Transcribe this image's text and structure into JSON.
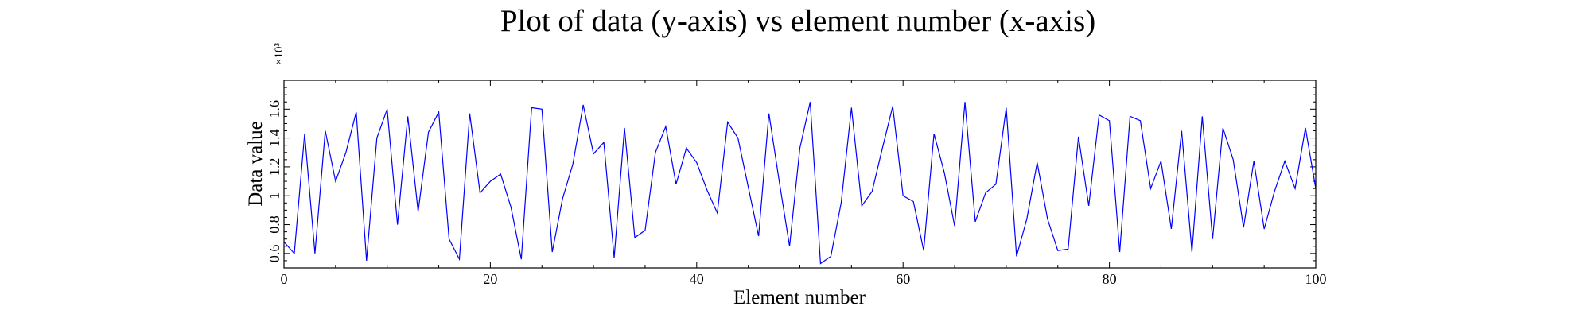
{
  "chart_data": {
    "type": "line",
    "title": "Plot of data (y-axis) vs element number (x-axis)",
    "xlabel": "Element number",
    "ylabel": "Data value",
    "y_scale_label": "×10³",
    "xlim": [
      0,
      100
    ],
    "ylim": [
      0.5,
      1.8
    ],
    "x_ticks": [
      0,
      20,
      40,
      60,
      80,
      100
    ],
    "y_ticks": [
      0.6,
      0.8,
      1.0,
      1.2,
      1.4,
      1.6
    ],
    "y_tick_labels": [
      "0.6",
      "0.8",
      "1",
      "1.2",
      "1.4",
      "1.6"
    ],
    "grid": false,
    "series": [
      {
        "color": "#0000ff",
        "x": [
          0,
          1,
          2,
          3,
          4,
          5,
          6,
          7,
          8,
          9,
          10,
          11,
          12,
          13,
          14,
          15,
          16,
          17,
          18,
          19,
          20,
          21,
          22,
          23,
          24,
          25,
          26,
          27,
          28,
          29,
          30,
          31,
          32,
          33,
          34,
          35,
          36,
          37,
          38,
          39,
          40,
          41,
          42,
          43,
          44,
          45,
          46,
          47,
          48,
          49,
          50,
          51,
          52,
          53,
          54,
          55,
          56,
          57,
          58,
          59,
          60,
          61,
          62,
          63,
          64,
          65,
          66,
          67,
          68,
          69,
          70,
          71,
          72,
          73,
          74,
          75,
          76,
          77,
          78,
          79,
          80,
          81,
          82,
          83,
          84,
          85,
          86,
          87,
          88,
          89,
          90,
          91,
          92,
          93,
          94,
          95,
          96,
          97,
          98,
          99,
          100
        ],
        "y": [
          0.68,
          0.6,
          1.43,
          0.6,
          1.45,
          1.1,
          1.3,
          1.58,
          0.55,
          1.4,
          1.6,
          0.8,
          1.55,
          0.89,
          1.44,
          1.58,
          0.7,
          0.56,
          1.57,
          1.02,
          1.1,
          1.15,
          0.92,
          0.56,
          1.61,
          1.6,
          0.61,
          0.98,
          1.22,
          1.63,
          1.29,
          1.37,
          0.57,
          1.47,
          0.71,
          0.76,
          1.3,
          1.48,
          1.08,
          1.33,
          1.23,
          1.04,
          0.88,
          1.51,
          1.4,
          1.06,
          0.72,
          1.57,
          1.1,
          0.65,
          1.33,
          1.65,
          0.53,
          0.58,
          0.95,
          1.61,
          0.93,
          1.03,
          1.33,
          1.62,
          1.0,
          0.96,
          0.62,
          1.43,
          1.16,
          0.79,
          1.65,
          0.82,
          1.02,
          1.08,
          1.61,
          0.58,
          0.84,
          1.23,
          0.84,
          0.62,
          0.63,
          1.41,
          0.93,
          1.56,
          1.52,
          0.61,
          1.55,
          1.52,
          1.05,
          1.24,
          0.77,
          1.45,
          0.61,
          1.55,
          0.7,
          1.47,
          1.25,
          0.78,
          1.24,
          0.77,
          1.03,
          1.24,
          1.05,
          1.47,
          1.05
        ]
      }
    ]
  }
}
